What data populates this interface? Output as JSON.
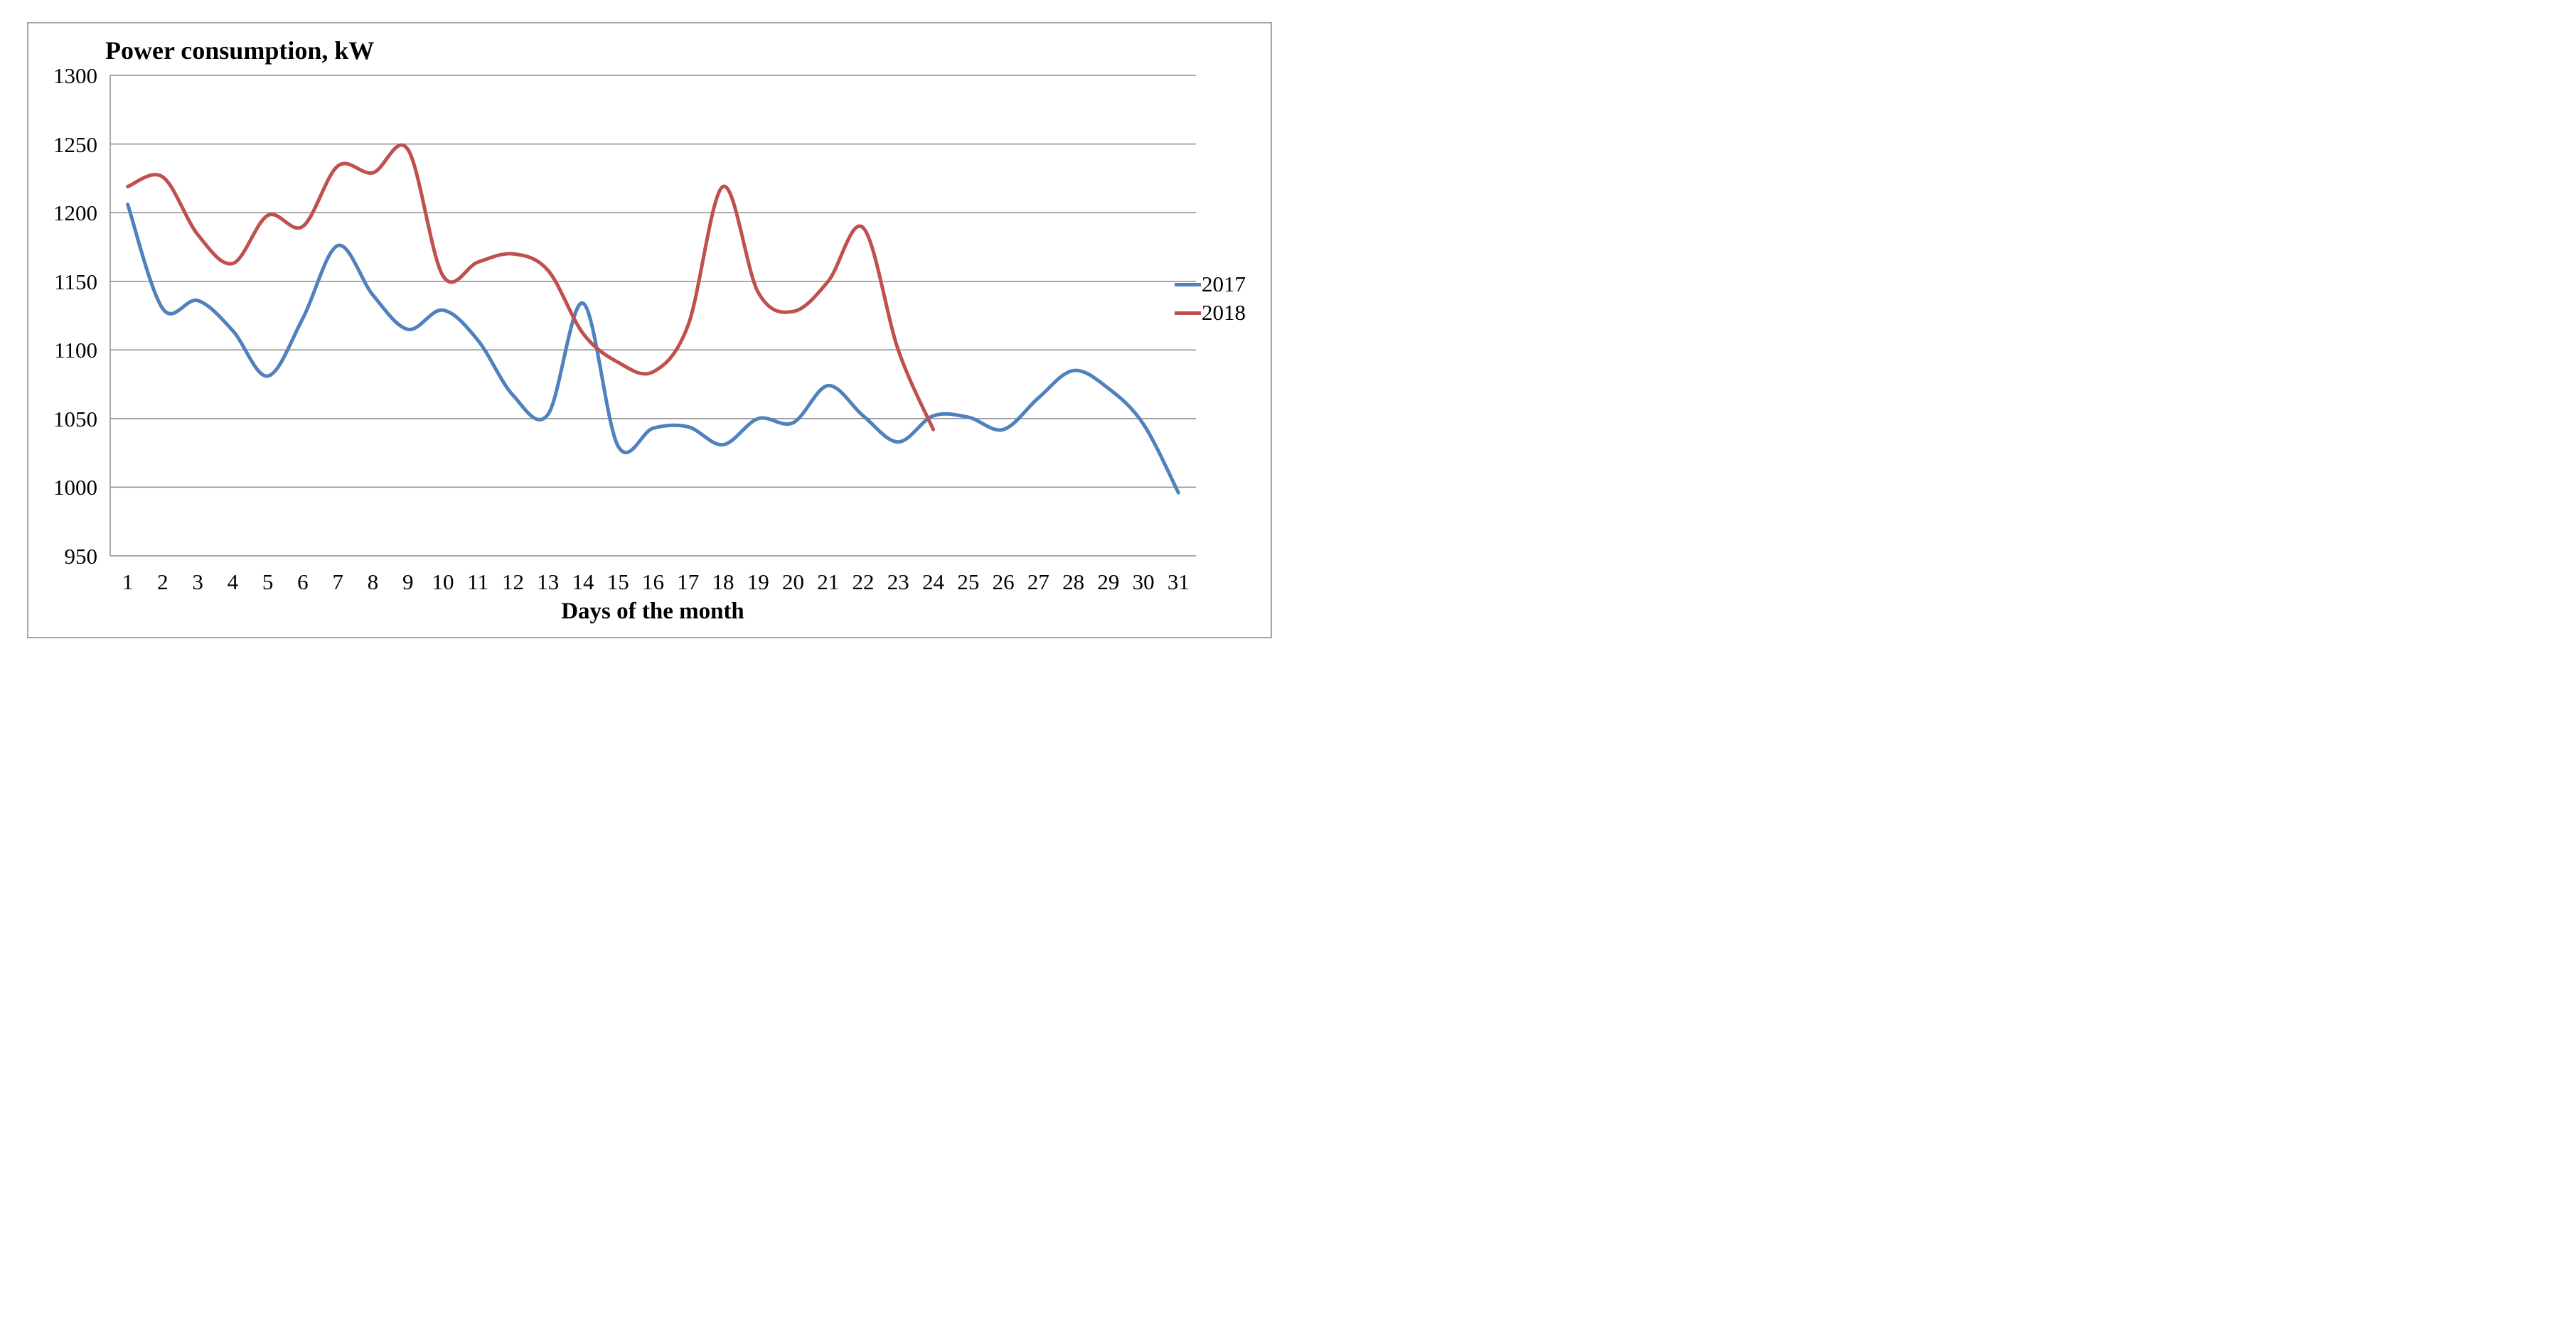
{
  "chart_data": {
    "type": "line",
    "title": "Power consumption, kW",
    "xlabel": "Days of the month",
    "ylabel": "",
    "x": [
      1,
      2,
      3,
      4,
      5,
      6,
      7,
      8,
      9,
      10,
      11,
      12,
      13,
      14,
      15,
      16,
      17,
      18,
      19,
      20,
      21,
      22,
      23,
      24,
      25,
      26,
      27,
      28,
      29,
      30,
      31
    ],
    "ylim": [
      950,
      1300
    ],
    "yticks": [
      950,
      1000,
      1050,
      1100,
      1150,
      1200,
      1250,
      1300
    ],
    "grid": true,
    "smooth": true,
    "legend_position": "right",
    "series": [
      {
        "name": "2017",
        "color": "#4F81BD",
        "values": [
          1206,
          1130,
          1136,
          1114,
          1081,
          1123,
          1176,
          1140,
          1115,
          1129,
          1107,
          1067,
          1053,
          1134,
          1030,
          1043,
          1044,
          1031,
          1050,
          1047,
          1074,
          1052,
          1033,
          1052,
          1051,
          1042,
          1065,
          1085,
          1072,
          1046,
          996
        ]
      },
      {
        "name": "2018",
        "color": "#C0504D",
        "values": [
          1219,
          1226,
          1184,
          1163,
          1198,
          1190,
          1234,
          1229,
          1246,
          1154,
          1164,
          1170,
          1158,
          1112,
          1091,
          1084,
          1118,
          1219,
          1142,
          1128,
          1150,
          1189,
          1100,
          1042
        ]
      }
    ],
    "gridline_color": "#8c8c8c"
  }
}
